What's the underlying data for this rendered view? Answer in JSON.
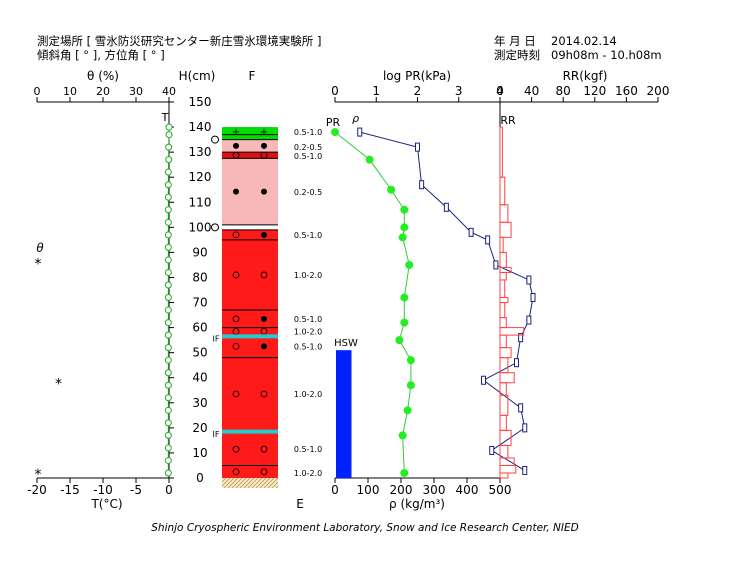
{
  "header": {
    "site_line": "測定場所 [ 雪氷防災研究センター新庄雪氷環境実験所 ]",
    "angle_line": "傾斜角 [ ° ], 方位角 [ ° ]",
    "date_label": "年 月 日",
    "date_value": "2014.02.14",
    "time_label": "測定時刻",
    "time_value": "09h08m - 10.h08m"
  },
  "footer": {
    "credit": "Shinjo Cryospheric Environment Laboratory, Snow and Ice Research Center, NIED"
  },
  "chart_data": [
    {
      "type": "line",
      "name": "theta-temperature-panel",
      "axis_labels": {
        "theta_top": "θ (%)",
        "T_bottom": "T(°C)",
        "height": "H(cm)",
        "theta_marker": "θ",
        "T_series": "T"
      },
      "theta_ticks": [
        "0",
        "10",
        "20",
        "30",
        "40"
      ],
      "T_ticks": [
        "-20",
        "-15",
        "-10",
        "-5",
        "0"
      ],
      "height_ticks": [
        "0",
        "10",
        "20",
        "30",
        "40",
        "50",
        "60",
        "70",
        "80",
        "90",
        "100",
        "110",
        "120",
        "130",
        "140",
        "150"
      ],
      "theta_range": [
        0,
        40
      ],
      "T_range": [
        -20,
        0
      ],
      "height_range": [
        0,
        150
      ],
      "temperature": {
        "h": [
          140,
          137,
          132,
          127,
          122,
          117,
          112,
          107,
          102,
          97,
          92,
          87,
          82,
          77,
          72,
          67,
          62,
          57,
          52,
          47,
          42,
          37,
          32,
          27,
          22,
          17,
          12,
          7,
          2
        ],
        "t": [
          0,
          0,
          -0.05,
          -0.05,
          -0.1,
          -0.1,
          -0.1,
          -0.1,
          -0.1,
          -0.1,
          -0.1,
          -0.1,
          -0.1,
          -0.1,
          -0.1,
          -0.1,
          -0.1,
          -0.1,
          -0.1,
          -0.1,
          -0.1,
          -0.1,
          -0.1,
          -0.1,
          -0.1,
          -0.1,
          -0.1,
          -0.1,
          -0.1
        ]
      },
      "theta_markers": [
        {
          "h": 86,
          "theta": 0.3
        },
        {
          "h": 38,
          "theta": 6.5
        },
        {
          "h": 2,
          "theta": 0.3
        }
      ]
    },
    {
      "type": "stratigraphy",
      "name": "snow-layer-column",
      "column_top_label": "F",
      "column_bottom_label": "E",
      "if_label": "IF",
      "layers": [
        {
          "bottom": 137,
          "top": 140,
          "color": "#00dd00",
          "symbol": "+"
        },
        {
          "bottom": 135,
          "top": 137,
          "color": "#00dd00",
          "symbol": ""
        },
        {
          "bottom": 130,
          "top": 135,
          "color": "#f7b8b8",
          "symbol": "filled-circle"
        },
        {
          "bottom": 127.5,
          "top": 130,
          "color": "#dd1111",
          "symbol": "open-circle"
        },
        {
          "bottom": 101,
          "top": 127.5,
          "color": "#f7b8b8",
          "symbol": "filled-circle"
        },
        {
          "bottom": 99,
          "top": 101,
          "color": "#ffffff",
          "symbol": ""
        },
        {
          "bottom": 95,
          "top": 99,
          "color": "#ff1a1a",
          "symbol": "open-filled"
        },
        {
          "bottom": 67,
          "top": 95,
          "color": "#ff1a1a",
          "symbol": "open-circle"
        },
        {
          "bottom": 60,
          "top": 67,
          "color": "#ff1a1a",
          "symbol": "open-filled"
        },
        {
          "bottom": 57,
          "top": 60,
          "color": "#ff1a1a",
          "symbol": "open-circle"
        },
        {
          "bottom": 48,
          "top": 57,
          "color": "#ff1a1a",
          "symbol": "open-filled"
        },
        {
          "bottom": 19,
          "top": 48,
          "color": "#ff1a1a",
          "symbol": "open-circle"
        },
        {
          "bottom": 5,
          "top": 18,
          "color": "#ff1a1a",
          "symbol": "open-circle"
        },
        {
          "bottom": 0,
          "top": 5,
          "color": "#ff1a1a",
          "symbol": "open-circle"
        }
      ],
      "ice_lines": [
        56.5,
        18.5
      ],
      "boundary_lines": [
        137,
        135,
        130,
        127.5,
        101,
        99,
        95,
        67,
        60,
        57,
        48,
        5
      ],
      "if_heights": [
        56,
        18
      ],
      "open_marker_heights": [
        135,
        100
      ],
      "grain_labels": [
        {
          "h": 138,
          "text": "0.5-1.0"
        },
        {
          "h": 132,
          "text": "0.2-0.5"
        },
        {
          "h": 128.5,
          "text": "0.5-1.0"
        },
        {
          "h": 114,
          "text": "0.2-0.5"
        },
        {
          "h": 97,
          "text": "0.5-1.0"
        },
        {
          "h": 81,
          "text": "1.0-2.0"
        },
        {
          "h": 63.5,
          "text": "0.5-1.0"
        },
        {
          "h": 58.5,
          "text": "1.0-2.0"
        },
        {
          "h": 52.5,
          "text": "0.5-1.0"
        },
        {
          "h": 33.5,
          "text": "1.0-2.0"
        },
        {
          "h": 11.5,
          "text": "0.5-1.0"
        },
        {
          "h": 2,
          "text": "1.0-2.0"
        }
      ]
    },
    {
      "type": "line",
      "name": "density-pr-panel",
      "axis_labels": {
        "pr_top": "log PR(kPa)",
        "rho_bottom": "ρ (kg/m³)",
        "pr_series": "PR",
        "rho_series": "ρ",
        "hsw": "HSW"
      },
      "pr_ticks": [
        "0",
        "1",
        "2",
        "3",
        "4"
      ],
      "rho_ticks": [
        "0",
        "100",
        "200",
        "300",
        "400",
        "500"
      ],
      "pr_range": [
        0,
        4
      ],
      "rho_range": [
        0,
        500
      ],
      "density": {
        "h": [
          138,
          127,
          115,
          107,
          100,
          96,
          85,
          72,
          62,
          55,
          47,
          37,
          27,
          17,
          2
        ],
        "rho": [
          0,
          105,
          170,
          210,
          210,
          205,
          225,
          210,
          210,
          195,
          230,
          230,
          220,
          205,
          210
        ]
      },
      "pr": {
        "h": [
          138,
          132,
          117,
          108,
          98,
          95,
          85,
          79,
          72,
          63,
          56,
          46,
          39,
          28,
          20,
          11,
          3
        ],
        "pr": [
          0.6,
          2.0,
          2.1,
          2.7,
          3.3,
          3.7,
          3.9,
          4.7,
          4.8,
          4.7,
          4.5,
          4.4,
          3.6,
          4.5,
          4.6,
          3.8,
          4.6
        ]
      },
      "hsw": {
        "value": 50,
        "h_top": 51
      }
    },
    {
      "type": "step",
      "name": "ram-resistance-panel",
      "axis_labels": {
        "rr_top": "RR(kgf)",
        "rr_series": "RR"
      },
      "rr_ticks": [
        "0",
        "40",
        "80",
        "120",
        "160",
        "200"
      ],
      "rr_range": [
        0,
        200
      ],
      "rr_profile": [
        {
          "top": 140,
          "bottom": 120,
          "rr": 3
        },
        {
          "top": 120,
          "bottom": 109,
          "rr": 6
        },
        {
          "top": 109,
          "bottom": 102,
          "rr": 10
        },
        {
          "top": 102,
          "bottom": 96,
          "rr": 14
        },
        {
          "top": 96,
          "bottom": 90,
          "rr": 4
        },
        {
          "top": 90,
          "bottom": 84,
          "rr": 8
        },
        {
          "top": 84,
          "bottom": 82,
          "rr": 14
        },
        {
          "top": 82,
          "bottom": 79,
          "rr": 8
        },
        {
          "top": 79,
          "bottom": 72,
          "rr": 6
        },
        {
          "top": 72,
          "bottom": 70,
          "rr": 10
        },
        {
          "top": 70,
          "bottom": 64,
          "rr": 6
        },
        {
          "top": 64,
          "bottom": 60,
          "rr": 8
        },
        {
          "top": 60,
          "bottom": 57,
          "rr": 30
        },
        {
          "top": 57,
          "bottom": 52,
          "rr": 8
        },
        {
          "top": 52,
          "bottom": 48,
          "rr": 14
        },
        {
          "top": 48,
          "bottom": 42,
          "rr": 10
        },
        {
          "top": 42,
          "bottom": 38,
          "rr": 18
        },
        {
          "top": 38,
          "bottom": 33,
          "rr": 8
        },
        {
          "top": 33,
          "bottom": 25,
          "rr": 10
        },
        {
          "top": 25,
          "bottom": 19,
          "rr": 8
        },
        {
          "top": 19,
          "bottom": 13,
          "rr": 14
        },
        {
          "top": 13,
          "bottom": 8,
          "rr": 10
        },
        {
          "top": 8,
          "bottom": 5,
          "rr": 18
        },
        {
          "top": 5,
          "bottom": 2,
          "rr": 20
        },
        {
          "top": 2,
          "bottom": 0,
          "rr": 10
        }
      ]
    }
  ]
}
